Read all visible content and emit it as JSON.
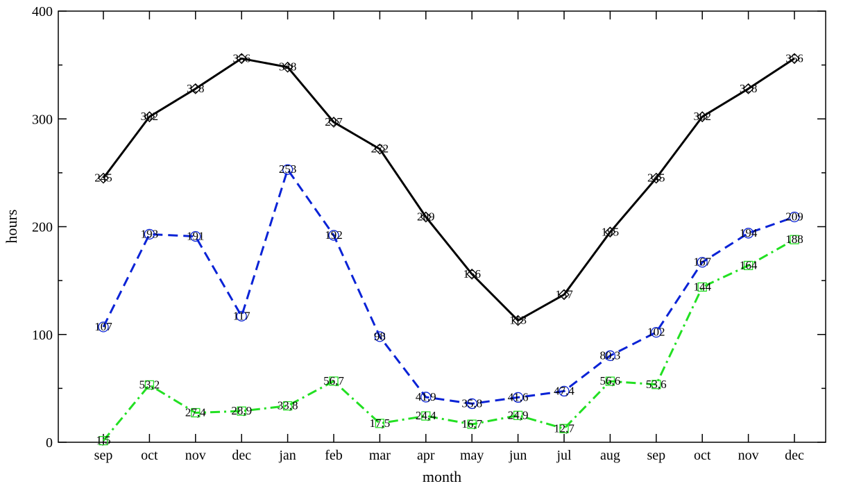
{
  "chart_data": {
    "type": "line",
    "xlabel": "month",
    "ylabel": "hours",
    "ylim": [
      0,
      400
    ],
    "y_ticks": [
      0,
      100,
      200,
      300,
      400
    ],
    "categories": [
      "sep",
      "oct",
      "nov",
      "dec",
      "jan",
      "feb",
      "mar",
      "apr",
      "may",
      "jun",
      "jul",
      "aug",
      "sep",
      "oct",
      "nov",
      "dec"
    ],
    "grid": false,
    "series": [
      {
        "values": [
          245,
          302,
          328,
          356,
          348,
          297,
          272,
          209,
          156,
          113,
          137,
          195,
          245,
          302,
          328,
          356
        ],
        "labels": [
          "245",
          "302",
          "328",
          "356",
          "348",
          "297",
          "272",
          "209",
          "156",
          "113",
          "137",
          "195",
          "245",
          "302",
          "328",
          "356"
        ],
        "color": "#000000",
        "line_style": "solid",
        "marker": "diamond"
      },
      {
        "values": [
          107,
          193,
          191,
          117,
          253,
          192,
          98,
          41.9,
          35.8,
          41.6,
          47.4,
          80.3,
          102,
          167,
          194,
          209
        ],
        "labels": [
          "107",
          "193",
          "191",
          "117",
          "253",
          "192",
          "98",
          "41,9",
          "35,8",
          "41,6",
          "47,4",
          "80,3",
          "102",
          "167",
          "194",
          "209"
        ],
        "color": "#0a23d6",
        "line_style": "dashed",
        "marker": "circle"
      },
      {
        "values": [
          1.5,
          53.2,
          27.4,
          28.9,
          33.8,
          56.7,
          17.5,
          24.4,
          16.7,
          24.9,
          12.7,
          56.6,
          53.6,
          144,
          164,
          188
        ],
        "labels": [
          "1,5",
          "53,2",
          "27,4",
          "28,9",
          "33,8",
          "56,7",
          "17,5",
          "24,4",
          "16,7",
          "24,9",
          "12,7",
          "56,6",
          "53,6",
          "144",
          "164",
          "188"
        ],
        "color": "#22e022",
        "line_style": "dashdot",
        "marker": "square"
      }
    ]
  }
}
